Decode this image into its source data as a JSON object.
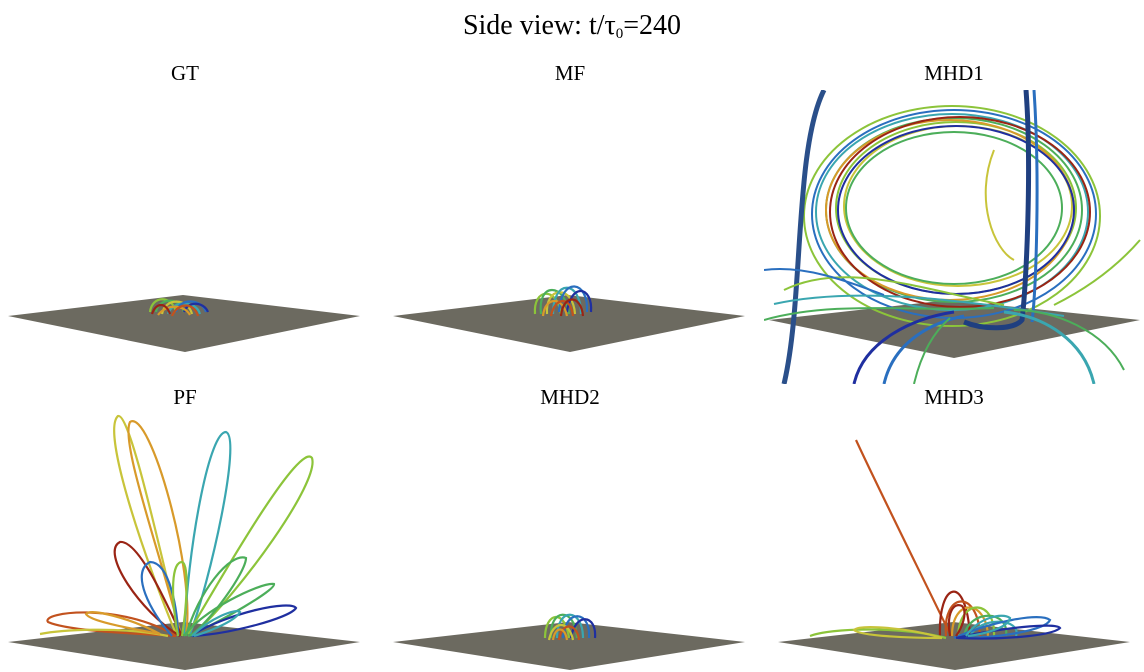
{
  "figure": {
    "title_prefix": "Side view: t/τ",
    "title_sub": "0",
    "title_suffix": "=240"
  },
  "panels": [
    {
      "id": "gt",
      "title": "GT"
    },
    {
      "id": "mf",
      "title": "MF"
    },
    {
      "id": "mhd1",
      "title": "MHD1"
    },
    {
      "id": "pf",
      "title": "PF"
    },
    {
      "id": "mhd2",
      "title": "MHD2"
    },
    {
      "id": "mhd3",
      "title": "MHD3"
    }
  ],
  "colors": {
    "plane": "#6c6a60",
    "line_palette": [
      "#1f2fa0",
      "#2a6fbf",
      "#3aa6b0",
      "#4cae5a",
      "#8cc43a",
      "#c8c43a",
      "#d89a2a",
      "#c2521e",
      "#9a2414"
    ]
  }
}
